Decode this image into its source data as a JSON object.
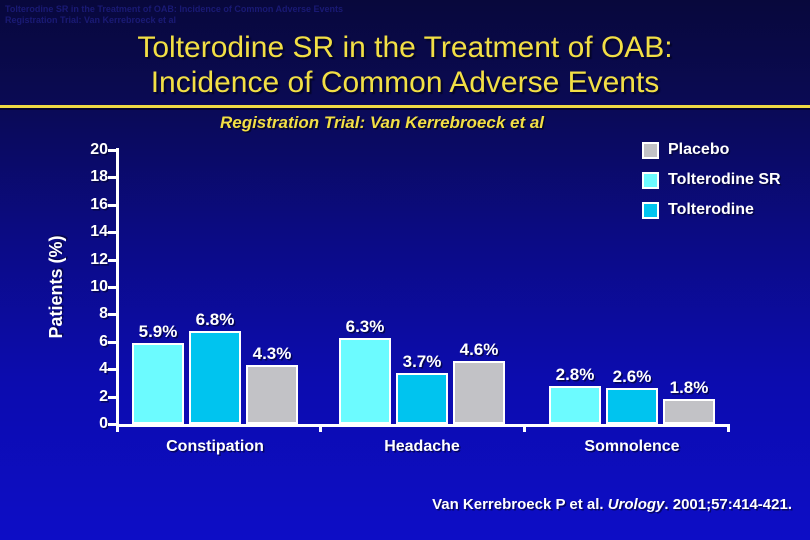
{
  "slide": {
    "watermark_line1": "Tolterodine SR in the Treatment of OAB: Incidence of Common Adverse Events",
    "watermark_line2": "Registration Trial: Van Kerrebroeck et al",
    "title_line1": "Tolterodine SR in the Treatment of OAB:",
    "title_line2": "Incidence of Common Adverse Events",
    "subtitle": "Registration Trial: Van Kerrebroeck et al",
    "citation": {
      "prefix": "Van Kerrebroeck P et al. ",
      "journal": "Urology",
      "suffix": ". 2001;57:414-421."
    },
    "colors": {
      "title_yellow": "#f2df45",
      "background_top": "#08083c",
      "background_bottom": "#0d0dc6",
      "axis_white": "#ffffff"
    }
  },
  "chart_data": {
    "type": "bar",
    "title": "Registration Trial: Van Kerrebroeck et al",
    "xlabel": "",
    "ylabel": "Patients (%)",
    "ylim": [
      0,
      20
    ],
    "ytick_step": 2,
    "grid": false,
    "legend_position": "top-right",
    "value_label_suffix": "%",
    "categories": [
      "Constipation",
      "Headache",
      "Somnolence"
    ],
    "series": [
      {
        "name": "Tolterodine SR",
        "color": "#6cfbff",
        "values": [
          5.9,
          6.3,
          2.8
        ]
      },
      {
        "name": "Tolterodine",
        "color": "#00c4ef",
        "values": [
          6.8,
          3.7,
          2.6
        ]
      },
      {
        "name": "Placebo",
        "color": "#c2c2c6",
        "values": [
          4.3,
          4.6,
          1.8
        ]
      }
    ],
    "legend_order": [
      "Placebo",
      "Tolterodine SR",
      "Tolterodine"
    ]
  }
}
